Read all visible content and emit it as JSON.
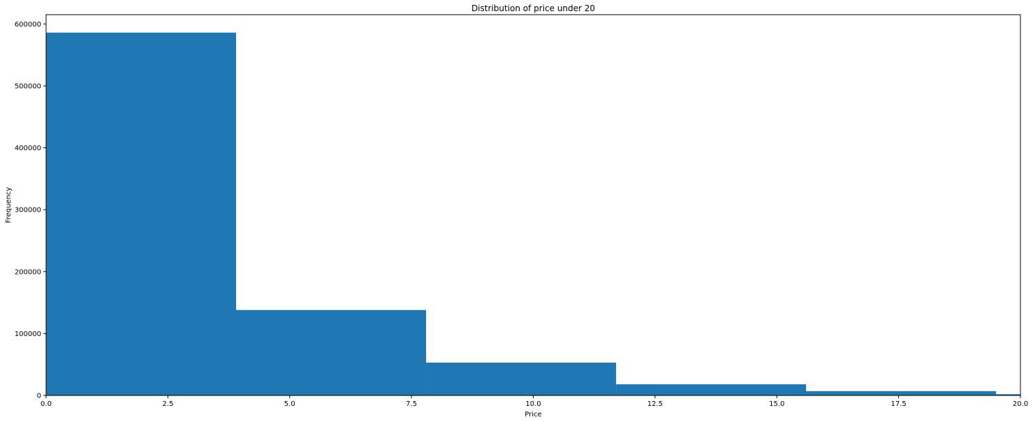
{
  "chart_data": {
    "type": "bar",
    "title": "Distribution of price under 20",
    "xlabel": "Price",
    "ylabel": "Frequency",
    "xlim": [
      0,
      20
    ],
    "ylim": [
      0,
      615000
    ],
    "x_ticks": [
      "0.0",
      "2.5",
      "5.0",
      "7.5",
      "10.0",
      "12.5",
      "15.0",
      "17.5",
      "20.0"
    ],
    "y_ticks": [
      "0",
      "100000",
      "200000",
      "300000",
      "400000",
      "500000",
      "600000"
    ],
    "bins": [
      {
        "start": 0.0,
        "end": 3.9,
        "value": 586000
      },
      {
        "start": 3.9,
        "end": 7.8,
        "value": 138000
      },
      {
        "start": 7.8,
        "end": 11.7,
        "value": 53000
      },
      {
        "start": 11.7,
        "end": 15.6,
        "value": 18000
      },
      {
        "start": 15.6,
        "end": 19.5,
        "value": 7000
      },
      {
        "start": 19.5,
        "end": 23.4,
        "value": 2000
      }
    ],
    "bar_color": "#1f77b4",
    "grid": false,
    "legend": false
  }
}
